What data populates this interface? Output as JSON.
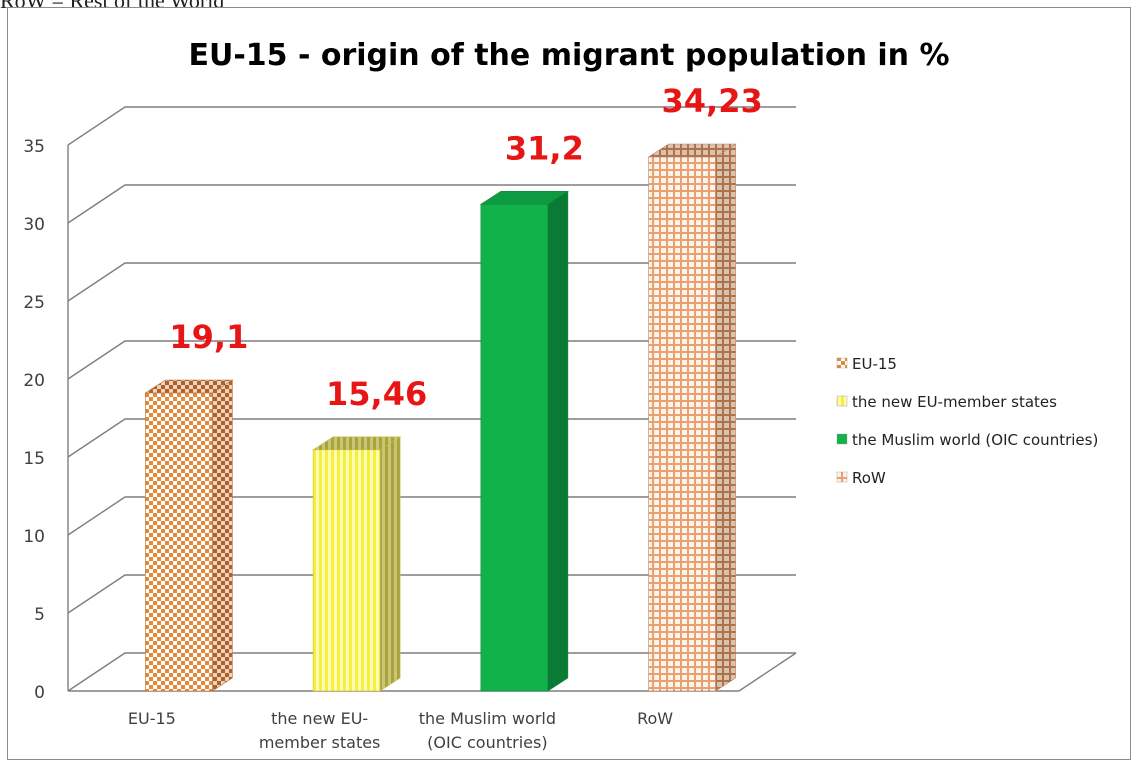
{
  "header_note": "RoW = Rest of the World",
  "chart_data": {
    "type": "bar",
    "title": "EU-15 - origin of the migrant population in %",
    "categories": [
      "EU-15",
      "the new EU-member states",
      "the Muslim world (OIC countries)",
      "RoW"
    ],
    "category_tick_lines": [
      [
        "EU-15"
      ],
      [
        "the new EU-",
        "member states"
      ],
      [
        "the Muslim world",
        "(OIC countries)"
      ],
      [
        "RoW"
      ]
    ],
    "values": [
      19.1,
      15.46,
      31.2,
      34.23
    ],
    "value_labels": [
      "19,1",
      "15,46",
      "31,2",
      "34,23"
    ],
    "legend": [
      "EU-15",
      "the new EU-member states",
      "the Muslim world (OIC countries)",
      "RoW"
    ],
    "legend_position": "right",
    "ylim": [
      0,
      35
    ],
    "yticks": [
      0,
      5,
      10,
      15,
      20,
      25,
      30,
      35
    ],
    "grid": true,
    "style_3d": true,
    "colors": {
      "eu15": "#e3893a",
      "new_eu": "#f6f03a",
      "muslim": "#12b24b",
      "row": "#e9a070",
      "value_label": "#e81515",
      "grid": "#7f7f7f",
      "axis_text": "#404040"
    }
  }
}
